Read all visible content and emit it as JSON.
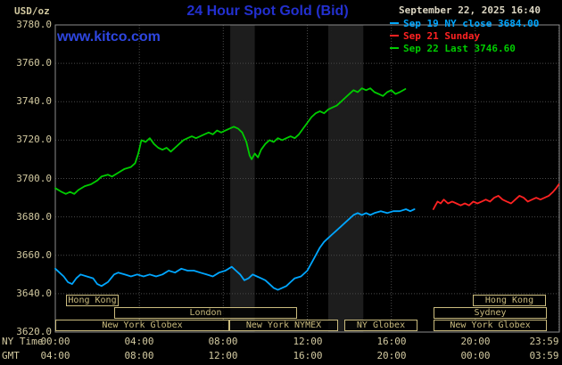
{
  "header": {
    "unit_label": "USD/oz",
    "title": "24 Hour Spot Gold (Bid)",
    "watermark": "www.kitco.com",
    "timestamp": "September 22, 2025 16:40"
  },
  "legend": [
    {
      "label": "Sep 19 NY close 3684.00",
      "color": "#00a6ff"
    },
    {
      "label": "Sep 21 Sunday",
      "color": "#ff2222"
    },
    {
      "label": "Sep 22 Last 3746.60",
      "color": "#00cc00"
    }
  ],
  "footer": {
    "ny_time_label": "NY Time",
    "gmt_label": "GMT"
  },
  "colors": {
    "background": "#000000",
    "grid": "#4a4a4a",
    "frame": "#8c8c8c",
    "band": "#1d1d1d",
    "axis_text": "#d2c9a0",
    "session": "#cabb7e",
    "title_blue": "#2330cf",
    "kitco_blue": "#2e46e0",
    "timestamp_text": "#dcd6c2"
  },
  "chart_data": {
    "type": "line",
    "title": "24 Hour Spot Gold (Bid)",
    "ylabel": "USD/oz",
    "xlim_hours": [
      0,
      24
    ],
    "ylim": [
      3620,
      3780
    ],
    "y_tick_step": 20,
    "y_tick_labels": [
      "3780.0",
      "3760.0",
      "3740.0",
      "3720.0",
      "3700.0",
      "3680.0",
      "3660.0",
      "3640.0",
      "3620.0"
    ],
    "x_tick_hours": [
      0,
      4,
      8,
      12,
      16,
      20,
      23.983
    ],
    "x_tick_labels_ny": [
      "00:00",
      "04:00",
      "08:00",
      "12:00",
      "16:00",
      "20:00",
      "23:59"
    ],
    "x_tick_labels_gmt": [
      "04:00",
      "08:00",
      "12:00",
      "16:00",
      "20:00",
      "00:00",
      "03:59"
    ],
    "bands": [
      [
        8.33,
        9.5
      ],
      [
        13.0,
        14.67
      ]
    ],
    "series": [
      {
        "name": "Sep 19 NY close",
        "close_value": 3684.0,
        "color": "#00a6ff",
        "points": [
          [
            0,
            3653
          ],
          [
            0.2,
            3651
          ],
          [
            0.4,
            3649
          ],
          [
            0.6,
            3646
          ],
          [
            0.8,
            3645
          ],
          [
            1,
            3648
          ],
          [
            1.2,
            3650
          ],
          [
            1.5,
            3649
          ],
          [
            1.8,
            3648
          ],
          [
            2,
            3645
          ],
          [
            2.2,
            3644
          ],
          [
            2.5,
            3646
          ],
          [
            2.8,
            3650
          ],
          [
            3,
            3651
          ],
          [
            3.3,
            3650
          ],
          [
            3.6,
            3649
          ],
          [
            3.9,
            3650
          ],
          [
            4.2,
            3649
          ],
          [
            4.5,
            3650
          ],
          [
            4.8,
            3649
          ],
          [
            5.1,
            3650
          ],
          [
            5.4,
            3652
          ],
          [
            5.7,
            3651
          ],
          [
            6,
            3653
          ],
          [
            6.3,
            3652
          ],
          [
            6.6,
            3652
          ],
          [
            6.9,
            3651
          ],
          [
            7.2,
            3650
          ],
          [
            7.5,
            3649
          ],
          [
            7.8,
            3651
          ],
          [
            8.1,
            3652
          ],
          [
            8.4,
            3654
          ],
          [
            8.6,
            3652
          ],
          [
            8.8,
            3650
          ],
          [
            9,
            3647
          ],
          [
            9.2,
            3648
          ],
          [
            9.4,
            3650
          ],
          [
            9.6,
            3649
          ],
          [
            9.8,
            3648
          ],
          [
            10,
            3647
          ],
          [
            10.2,
            3645
          ],
          [
            10.4,
            3643
          ],
          [
            10.6,
            3642
          ],
          [
            10.8,
            3643
          ],
          [
            11,
            3644
          ],
          [
            11.2,
            3646
          ],
          [
            11.4,
            3648
          ],
          [
            11.7,
            3649
          ],
          [
            12,
            3652
          ],
          [
            12.2,
            3656
          ],
          [
            12.4,
            3660
          ],
          [
            12.6,
            3664
          ],
          [
            12.8,
            3667
          ],
          [
            13,
            3669
          ],
          [
            13.2,
            3671
          ],
          [
            13.4,
            3673
          ],
          [
            13.6,
            3675
          ],
          [
            13.8,
            3677
          ],
          [
            14,
            3679
          ],
          [
            14.2,
            3681
          ],
          [
            14.4,
            3682
          ],
          [
            14.6,
            3681
          ],
          [
            14.8,
            3682
          ],
          [
            15,
            3681
          ],
          [
            15.2,
            3682
          ],
          [
            15.5,
            3683
          ],
          [
            15.8,
            3682
          ],
          [
            16.1,
            3683
          ],
          [
            16.4,
            3683
          ],
          [
            16.7,
            3684
          ],
          [
            16.9,
            3683
          ],
          [
            17.1,
            3684
          ]
        ]
      },
      {
        "name": "Sep 21 Sunday",
        "color": "#ff2222",
        "points": [
          [
            18,
            3684
          ],
          [
            18.1,
            3686
          ],
          [
            18.2,
            3688
          ],
          [
            18.35,
            3687
          ],
          [
            18.5,
            3689
          ],
          [
            18.7,
            3687
          ],
          [
            18.9,
            3688
          ],
          [
            19.1,
            3687
          ],
          [
            19.3,
            3686
          ],
          [
            19.5,
            3687
          ],
          [
            19.7,
            3686
          ],
          [
            19.9,
            3688
          ],
          [
            20.1,
            3687
          ],
          [
            20.3,
            3688
          ],
          [
            20.5,
            3689
          ],
          [
            20.7,
            3688
          ],
          [
            20.9,
            3690
          ],
          [
            21.1,
            3691
          ],
          [
            21.3,
            3689
          ],
          [
            21.5,
            3688
          ],
          [
            21.7,
            3687
          ],
          [
            21.9,
            3689
          ],
          [
            22.1,
            3691
          ],
          [
            22.3,
            3690
          ],
          [
            22.5,
            3688
          ],
          [
            22.7,
            3689
          ],
          [
            22.9,
            3690
          ],
          [
            23.1,
            3689
          ],
          [
            23.3,
            3690
          ],
          [
            23.5,
            3691
          ],
          [
            23.7,
            3693
          ],
          [
            23.85,
            3695
          ],
          [
            23.98,
            3697
          ]
        ]
      },
      {
        "name": "Sep 22 Last",
        "last_value": 3746.6,
        "color": "#00cc00",
        "points": [
          [
            0,
            3695
          ],
          [
            0.3,
            3693
          ],
          [
            0.5,
            3692
          ],
          [
            0.7,
            3693
          ],
          [
            0.9,
            3692
          ],
          [
            1.1,
            3694
          ],
          [
            1.4,
            3696
          ],
          [
            1.7,
            3697
          ],
          [
            2,
            3699
          ],
          [
            2.2,
            3701
          ],
          [
            2.5,
            3702
          ],
          [
            2.7,
            3701
          ],
          [
            3,
            3703
          ],
          [
            3.3,
            3705
          ],
          [
            3.6,
            3706
          ],
          [
            3.8,
            3708
          ],
          [
            3.95,
            3713
          ],
          [
            4.1,
            3720
          ],
          [
            4.3,
            3719
          ],
          [
            4.5,
            3721
          ],
          [
            4.7,
            3718
          ],
          [
            4.9,
            3716
          ],
          [
            5.1,
            3715
          ],
          [
            5.3,
            3716
          ],
          [
            5.5,
            3714
          ],
          [
            5.7,
            3716
          ],
          [
            5.9,
            3718
          ],
          [
            6.1,
            3720
          ],
          [
            6.3,
            3721
          ],
          [
            6.5,
            3722
          ],
          [
            6.7,
            3721
          ],
          [
            6.9,
            3722
          ],
          [
            7.1,
            3723
          ],
          [
            7.3,
            3724
          ],
          [
            7.5,
            3723
          ],
          [
            7.7,
            3725
          ],
          [
            7.9,
            3724
          ],
          [
            8.1,
            3725
          ],
          [
            8.3,
            3726
          ],
          [
            8.5,
            3727
          ],
          [
            8.7,
            3726
          ],
          [
            8.9,
            3724
          ],
          [
            9.1,
            3719
          ],
          [
            9.25,
            3712
          ],
          [
            9.35,
            3710
          ],
          [
            9.5,
            3713
          ],
          [
            9.65,
            3711
          ],
          [
            9.8,
            3715
          ],
          [
            10,
            3718
          ],
          [
            10.2,
            3720
          ],
          [
            10.4,
            3719
          ],
          [
            10.6,
            3721
          ],
          [
            10.8,
            3720
          ],
          [
            11,
            3721
          ],
          [
            11.2,
            3722
          ],
          [
            11.4,
            3721
          ],
          [
            11.6,
            3723
          ],
          [
            11.8,
            3726
          ],
          [
            12,
            3729
          ],
          [
            12.2,
            3732
          ],
          [
            12.4,
            3734
          ],
          [
            12.6,
            3735
          ],
          [
            12.8,
            3734
          ],
          [
            13,
            3736
          ],
          [
            13.2,
            3737
          ],
          [
            13.4,
            3738
          ],
          [
            13.6,
            3740
          ],
          [
            13.8,
            3742
          ],
          [
            14,
            3744
          ],
          [
            14.2,
            3746
          ],
          [
            14.4,
            3745
          ],
          [
            14.6,
            3747
          ],
          [
            14.8,
            3746
          ],
          [
            15,
            3747
          ],
          [
            15.2,
            3745
          ],
          [
            15.4,
            3744
          ],
          [
            15.6,
            3743
          ],
          [
            15.8,
            3745
          ],
          [
            16,
            3746
          ],
          [
            16.2,
            3744
          ],
          [
            16.4,
            3745
          ],
          [
            16.67,
            3746.6
          ]
        ]
      }
    ],
    "sessions": [
      {
        "row": 0,
        "label": "Hong Kong",
        "from": 0.5,
        "to": 3.0
      },
      {
        "row": 0,
        "label": "Hong Kong",
        "from": 19.9,
        "to": 23.4
      },
      {
        "row": 1,
        "label": "London",
        "from": 2.8,
        "to": 11.5
      },
      {
        "row": 1,
        "label": "Sydney",
        "from": 18.0,
        "to": 23.4
      },
      {
        "row": 2,
        "label": "New York Globex",
        "from": 0.0,
        "to": 8.3
      },
      {
        "row": 2,
        "label": "New York NYMEX",
        "from": 8.3,
        "to": 13.5
      },
      {
        "row": 2,
        "label": "NY Globex",
        "from": 13.75,
        "to": 17.25
      },
      {
        "row": 2,
        "label": "New York Globex",
        "from": 18.0,
        "to": 23.4
      }
    ]
  }
}
